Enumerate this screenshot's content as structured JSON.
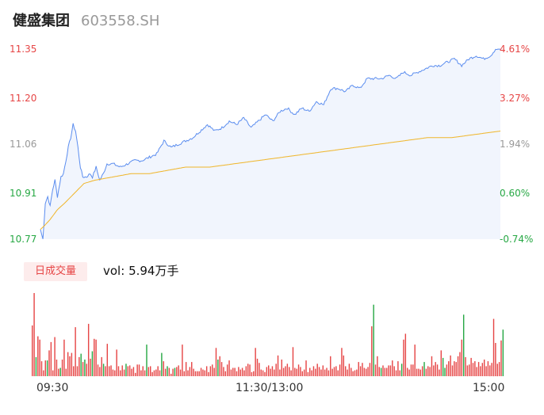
{
  "header": {
    "name": "健盛集团",
    "code": "603558.SH"
  },
  "volume_panel": {
    "tab_label": "日成交量",
    "vol_label": "vol:",
    "vol_value": "5.94万手"
  },
  "colors": {
    "up": "#e64545",
    "down": "#27a844",
    "price_line": "#5b8def",
    "avg_line": "#f0b528",
    "neutral": "#999999"
  },
  "chart_data": {
    "type": "line",
    "y_ticks": [
      {
        "price": "11.35",
        "pct": "4.61%",
        "color": "up"
      },
      {
        "price": "11.20",
        "pct": "3.27%",
        "color": "up"
      },
      {
        "price": "11.06",
        "pct": "1.94%",
        "color": "neutral"
      },
      {
        "price": "10.91",
        "pct": "0.60%",
        "color": "down"
      },
      {
        "price": "10.77",
        "pct": "-0.74%",
        "color": "down"
      }
    ],
    "ylim": [
      10.77,
      11.35
    ],
    "x_ticks": [
      "09:30",
      "11:30/13:00",
      "15:00"
    ],
    "price_keypoints": [
      [
        0,
        10.8
      ],
      [
        2,
        10.77
      ],
      [
        4,
        10.88
      ],
      [
        6,
        10.9
      ],
      [
        8,
        10.87
      ],
      [
        10,
        10.92
      ],
      [
        12,
        10.95
      ],
      [
        14,
        10.9
      ],
      [
        17,
        10.96
      ],
      [
        19,
        10.97
      ],
      [
        21,
        11.01
      ],
      [
        23,
        11.05
      ],
      [
        25,
        11.08
      ],
      [
        27,
        11.12
      ],
      [
        29,
        11.1
      ],
      [
        31,
        11.05
      ],
      [
        33,
        10.99
      ],
      [
        35,
        10.96
      ],
      [
        38,
        10.96
      ],
      [
        41,
        10.97
      ],
      [
        43,
        10.96
      ],
      [
        46,
        10.99
      ],
      [
        49,
        10.95
      ],
      [
        52,
        10.97
      ],
      [
        55,
        11.0
      ],
      [
        60,
        11.0
      ],
      [
        66,
        10.99
      ],
      [
        72,
        11.0
      ],
      [
        78,
        11.01
      ],
      [
        84,
        11.01
      ],
      [
        90,
        11.02
      ],
      [
        96,
        11.03
      ],
      [
        102,
        11.07
      ],
      [
        108,
        11.05
      ],
      [
        114,
        11.06
      ],
      [
        120,
        11.07
      ],
      [
        126,
        11.08
      ],
      [
        132,
        11.1
      ],
      [
        138,
        11.12
      ],
      [
        144,
        11.1
      ],
      [
        150,
        11.11
      ],
      [
        156,
        11.13
      ],
      [
        162,
        11.12
      ],
      [
        168,
        11.14
      ],
      [
        174,
        11.11
      ],
      [
        180,
        11.13
      ],
      [
        186,
        11.15
      ],
      [
        192,
        11.13
      ],
      [
        198,
        11.16
      ],
      [
        204,
        11.17
      ],
      [
        210,
        11.15
      ],
      [
        216,
        11.17
      ],
      [
        222,
        11.16
      ],
      [
        228,
        11.19
      ],
      [
        234,
        11.18
      ],
      [
        240,
        11.23
      ],
      [
        246,
        11.23
      ],
      [
        252,
        11.22
      ],
      [
        258,
        11.24
      ],
      [
        264,
        11.23
      ],
      [
        270,
        11.26
      ],
      [
        276,
        11.26
      ],
      [
        282,
        11.26
      ],
      [
        288,
        11.27
      ],
      [
        294,
        11.26
      ],
      [
        300,
        11.28
      ],
      [
        306,
        11.27
      ],
      [
        312,
        11.28
      ],
      [
        318,
        11.29
      ],
      [
        324,
        11.3
      ],
      [
        330,
        11.3
      ],
      [
        336,
        11.31
      ],
      [
        342,
        11.32
      ],
      [
        348,
        11.3
      ],
      [
        354,
        11.32
      ],
      [
        360,
        11.33
      ],
      [
        366,
        11.32
      ],
      [
        372,
        11.33
      ],
      [
        376,
        11.35
      ],
      [
        380,
        11.35
      ]
    ],
    "avg_keypoints": [
      [
        0,
        10.8
      ],
      [
        3,
        10.81
      ],
      [
        8,
        10.83
      ],
      [
        14,
        10.86
      ],
      [
        20,
        10.88
      ],
      [
        28,
        10.91
      ],
      [
        36,
        10.94
      ],
      [
        45,
        10.95
      ],
      [
        60,
        10.96
      ],
      [
        75,
        10.97
      ],
      [
        90,
        10.97
      ],
      [
        105,
        10.98
      ],
      [
        120,
        10.99
      ],
      [
        140,
        10.99
      ],
      [
        160,
        11.0
      ],
      [
        180,
        11.01
      ],
      [
        200,
        11.02
      ],
      [
        220,
        11.03
      ],
      [
        240,
        11.04
      ],
      [
        260,
        11.05
      ],
      [
        280,
        11.06
      ],
      [
        300,
        11.07
      ],
      [
        320,
        11.08
      ],
      [
        340,
        11.08
      ],
      [
        360,
        11.09
      ],
      [
        380,
        11.1
      ]
    ],
    "volume": {
      "ylim": [
        0,
        100
      ],
      "bars": [
        [
          61,
          "up"
        ],
        [
          100,
          "up"
        ],
        [
          23,
          "down"
        ],
        [
          48,
          "up"
        ],
        [
          44,
          "up"
        ],
        [
          18,
          "up"
        ],
        [
          7,
          "up"
        ],
        [
          19,
          "up"
        ],
        [
          19,
          "down"
        ],
        [
          31,
          "up"
        ],
        [
          41,
          "up"
        ],
        [
          7,
          "up"
        ],
        [
          47,
          "up"
        ],
        [
          20,
          "up"
        ],
        [
          9,
          "up"
        ],
        [
          10,
          "down"
        ],
        [
          20,
          "up"
        ],
        [
          44,
          "up"
        ],
        [
          9,
          "up"
        ],
        [
          29,
          "up"
        ],
        [
          24,
          "up"
        ],
        [
          28,
          "up"
        ],
        [
          12,
          "up"
        ],
        [
          59,
          "up"
        ],
        [
          12,
          "up"
        ],
        [
          23,
          "up"
        ],
        [
          27,
          "down"
        ],
        [
          17,
          "up"
        ],
        [
          20,
          "down"
        ],
        [
          15,
          "up"
        ],
        [
          63,
          "up"
        ],
        [
          21,
          "up"
        ],
        [
          30,
          "down"
        ],
        [
          45,
          "up"
        ],
        [
          44,
          "up"
        ],
        [
          14,
          "up"
        ],
        [
          11,
          "up"
        ],
        [
          23,
          "up"
        ],
        [
          15,
          "down"
        ],
        [
          12,
          "up"
        ],
        [
          39,
          "up"
        ],
        [
          12,
          "up"
        ],
        [
          13,
          "up"
        ],
        [
          8,
          "up"
        ],
        [
          7,
          "up"
        ],
        [
          32,
          "up"
        ],
        [
          12,
          "up"
        ],
        [
          7,
          "up"
        ],
        [
          13,
          "up"
        ],
        [
          8,
          "up"
        ],
        [
          15,
          "down"
        ],
        [
          12,
          "up"
        ],
        [
          13,
          "up"
        ],
        [
          9,
          "up"
        ],
        [
          11,
          "up"
        ],
        [
          4,
          "up"
        ],
        [
          14,
          "up"
        ],
        [
          14,
          "up"
        ],
        [
          7,
          "up"
        ],
        [
          12,
          "up"
        ],
        [
          7,
          "up"
        ],
        [
          38,
          "down"
        ],
        [
          11,
          "up"
        ],
        [
          12,
          "up"
        ],
        [
          5,
          "up"
        ],
        [
          7,
          "up"
        ],
        [
          8,
          "up"
        ],
        [
          12,
          "up"
        ],
        [
          7,
          "up"
        ],
        [
          28,
          "down"
        ],
        [
          18,
          "up"
        ],
        [
          9,
          "up"
        ],
        [
          12,
          "down"
        ],
        [
          10,
          "up"
        ],
        [
          3,
          "up"
        ],
        [
          9,
          "up"
        ],
        [
          10,
          "down"
        ],
        [
          11,
          "up"
        ],
        [
          13,
          "up"
        ],
        [
          8,
          "up"
        ],
        [
          38,
          "up"
        ],
        [
          6,
          "up"
        ],
        [
          17,
          "up"
        ],
        [
          7,
          "up"
        ],
        [
          11,
          "up"
        ],
        [
          17,
          "up"
        ],
        [
          9,
          "up"
        ],
        [
          6,
          "up"
        ],
        [
          6,
          "up"
        ],
        [
          6,
          "up"
        ],
        [
          10,
          "up"
        ],
        [
          8,
          "up"
        ],
        [
          7,
          "up"
        ],
        [
          12,
          "up"
        ],
        [
          5,
          "up"
        ],
        [
          12,
          "up"
        ],
        [
          14,
          "up"
        ],
        [
          10,
          "up"
        ],
        [
          34,
          "up"
        ],
        [
          20,
          "down"
        ],
        [
          24,
          "up"
        ],
        [
          17,
          "up"
        ],
        [
          11,
          "up"
        ],
        [
          6,
          "up"
        ],
        [
          14,
          "up"
        ],
        [
          19,
          "up"
        ],
        [
          8,
          "up"
        ],
        [
          10,
          "up"
        ],
        [
          10,
          "up"
        ],
        [
          6,
          "up"
        ],
        [
          11,
          "up"
        ],
        [
          8,
          "up"
        ],
        [
          10,
          "up"
        ],
        [
          7,
          "up"
        ],
        [
          12,
          "up"
        ],
        [
          15,
          "up"
        ],
        [
          14,
          "up"
        ],
        [
          5,
          "up"
        ],
        [
          6,
          "up"
        ],
        [
          34,
          "up"
        ],
        [
          21,
          "up"
        ],
        [
          16,
          "up"
        ],
        [
          8,
          "up"
        ],
        [
          7,
          "up"
        ],
        [
          5,
          "up"
        ],
        [
          11,
          "up"
        ],
        [
          13,
          "up"
        ],
        [
          9,
          "up"
        ],
        [
          12,
          "up"
        ],
        [
          8,
          "up"
        ],
        [
          15,
          "up"
        ],
        [
          25,
          "up"
        ],
        [
          8,
          "up"
        ],
        [
          20,
          "up"
        ],
        [
          10,
          "up"
        ],
        [
          12,
          "up"
        ],
        [
          15,
          "up"
        ],
        [
          11,
          "up"
        ],
        [
          7,
          "up"
        ],
        [
          35,
          "up"
        ],
        [
          10,
          "up"
        ],
        [
          9,
          "up"
        ],
        [
          14,
          "up"
        ],
        [
          11,
          "up"
        ],
        [
          6,
          "up"
        ],
        [
          8,
          "up"
        ],
        [
          19,
          "up"
        ],
        [
          5,
          "up"
        ],
        [
          10,
          "up"
        ],
        [
          7,
          "up"
        ],
        [
          12,
          "up"
        ],
        [
          9,
          "up"
        ],
        [
          15,
          "up"
        ],
        [
          11,
          "up"
        ],
        [
          8,
          "up"
        ],
        [
          13,
          "up"
        ],
        [
          8,
          "up"
        ],
        [
          10,
          "up"
        ],
        [
          7,
          "up"
        ],
        [
          24,
          "up"
        ],
        [
          9,
          "up"
        ],
        [
          11,
          "up"
        ],
        [
          12,
          "up"
        ],
        [
          7,
          "up"
        ],
        [
          14,
          "up"
        ],
        [
          34,
          "up"
        ],
        [
          25,
          "up"
        ],
        [
          12,
          "up"
        ],
        [
          8,
          "up"
        ],
        [
          15,
          "up"
        ],
        [
          10,
          "up"
        ],
        [
          6,
          "up"
        ],
        [
          7,
          "up"
        ],
        [
          8,
          "up"
        ],
        [
          17,
          "up"
        ],
        [
          12,
          "up"
        ],
        [
          16,
          "up"
        ],
        [
          10,
          "up"
        ],
        [
          9,
          "up"
        ],
        [
          11,
          "up"
        ],
        [
          16,
          "up"
        ],
        [
          60,
          "up"
        ],
        [
          86,
          "down"
        ],
        [
          14,
          "up"
        ],
        [
          24,
          "up"
        ],
        [
          11,
          "up"
        ],
        [
          10,
          "down"
        ],
        [
          13,
          "up"
        ],
        [
          10,
          "up"
        ],
        [
          10,
          "up"
        ],
        [
          13,
          "up"
        ],
        [
          13,
          "up"
        ],
        [
          19,
          "up"
        ],
        [
          12,
          "up"
        ],
        [
          7,
          "up"
        ],
        [
          18,
          "up"
        ],
        [
          7,
          "up"
        ],
        [
          15,
          "down"
        ],
        [
          44,
          "up"
        ],
        [
          51,
          "up"
        ],
        [
          10,
          "up"
        ],
        [
          8,
          "up"
        ],
        [
          14,
          "up"
        ],
        [
          14,
          "up"
        ],
        [
          38,
          "up"
        ],
        [
          9,
          "up"
        ],
        [
          9,
          "up"
        ],
        [
          8,
          "up"
        ],
        [
          12,
          "up"
        ],
        [
          17,
          "down"
        ],
        [
          9,
          "up"
        ],
        [
          12,
          "up"
        ],
        [
          11,
          "up"
        ],
        [
          24,
          "up"
        ],
        [
          13,
          "up"
        ],
        [
          17,
          "up"
        ],
        [
          14,
          "up"
        ],
        [
          8,
          "up"
        ],
        [
          31,
          "up"
        ],
        [
          22,
          "down"
        ],
        [
          10,
          "down"
        ],
        [
          14,
          "up"
        ],
        [
          18,
          "up"
        ],
        [
          25,
          "up"
        ],
        [
          13,
          "up"
        ],
        [
          18,
          "up"
        ],
        [
          17,
          "up"
        ],
        [
          24,
          "up"
        ],
        [
          29,
          "up"
        ],
        [
          44,
          "up"
        ],
        [
          74,
          "down"
        ],
        [
          23,
          "up"
        ],
        [
          13,
          "up"
        ],
        [
          14,
          "up"
        ],
        [
          22,
          "up"
        ],
        [
          16,
          "up"
        ],
        [
          18,
          "up"
        ],
        [
          11,
          "up"
        ],
        [
          17,
          "up"
        ],
        [
          12,
          "up"
        ],
        [
          16,
          "up"
        ],
        [
          20,
          "up"
        ],
        [
          12,
          "up"
        ],
        [
          18,
          "up"
        ],
        [
          13,
          "up"
        ],
        [
          16,
          "up"
        ],
        [
          69,
          "up"
        ],
        [
          40,
          "up"
        ],
        [
          15,
          "up"
        ],
        [
          17,
          "up"
        ],
        [
          43,
          "up"
        ],
        [
          56,
          "down"
        ]
      ]
    }
  }
}
